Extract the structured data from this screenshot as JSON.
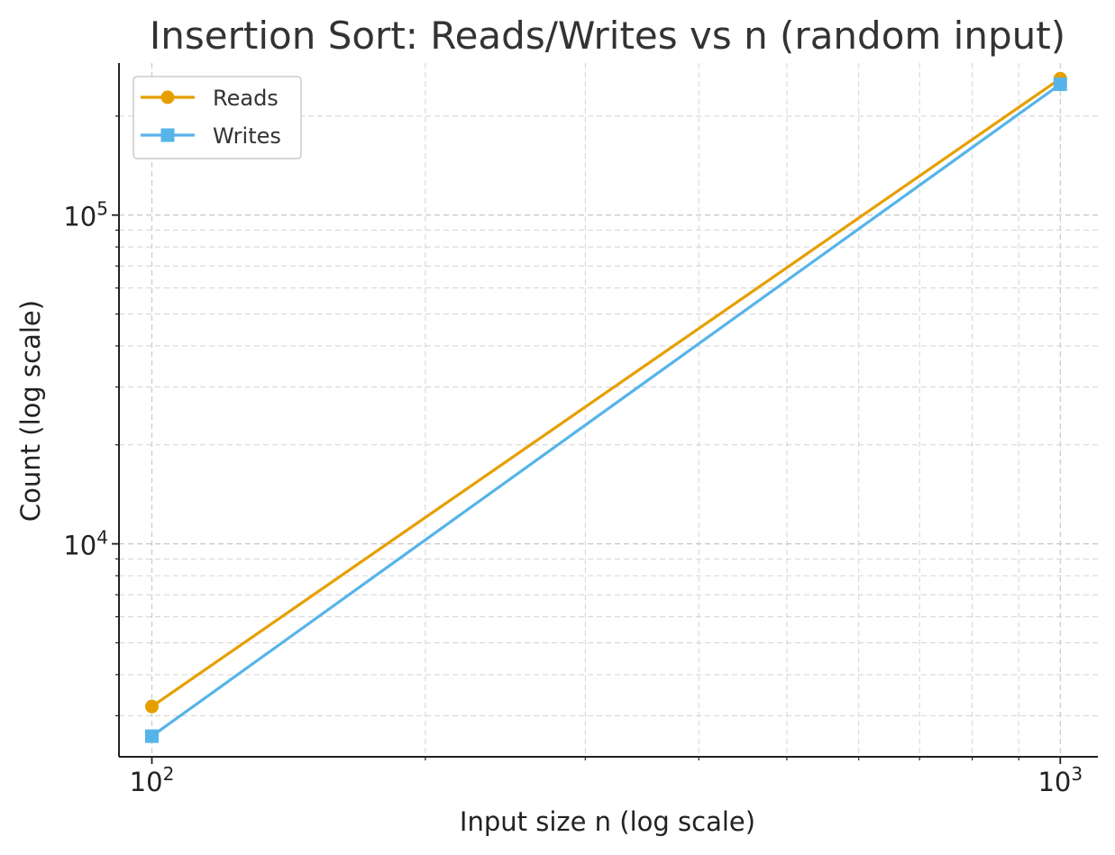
{
  "chart_data": {
    "type": "line",
    "title": "Insertion Sort: Reads/Writes vs n (random input)",
    "xlabel": "Input size n (log scale)",
    "ylabel": "Count (log scale)",
    "xscale": "log",
    "yscale": "log",
    "xlim": [
      92,
      1100
    ],
    "ylim": [
      2250,
      290000
    ],
    "grid": true,
    "legend_position": "top-left",
    "x_ticks": [
      {
        "value": 100,
        "base": "10",
        "exp": "2"
      },
      {
        "value": 1000,
        "base": "10",
        "exp": "3"
      }
    ],
    "y_ticks": [
      {
        "value": 10000,
        "base": "10",
        "exp": "4"
      },
      {
        "value": 100000,
        "base": "10",
        "exp": "5"
      }
    ],
    "x": [
      100,
      1000
    ],
    "series": [
      {
        "name": "Reads",
        "values": [
          3200,
          260000
        ],
        "color": "#E69F00",
        "marker": "circle"
      },
      {
        "name": "Writes",
        "values": [
          2600,
          250000
        ],
        "color": "#56B4E9",
        "marker": "square"
      }
    ]
  }
}
